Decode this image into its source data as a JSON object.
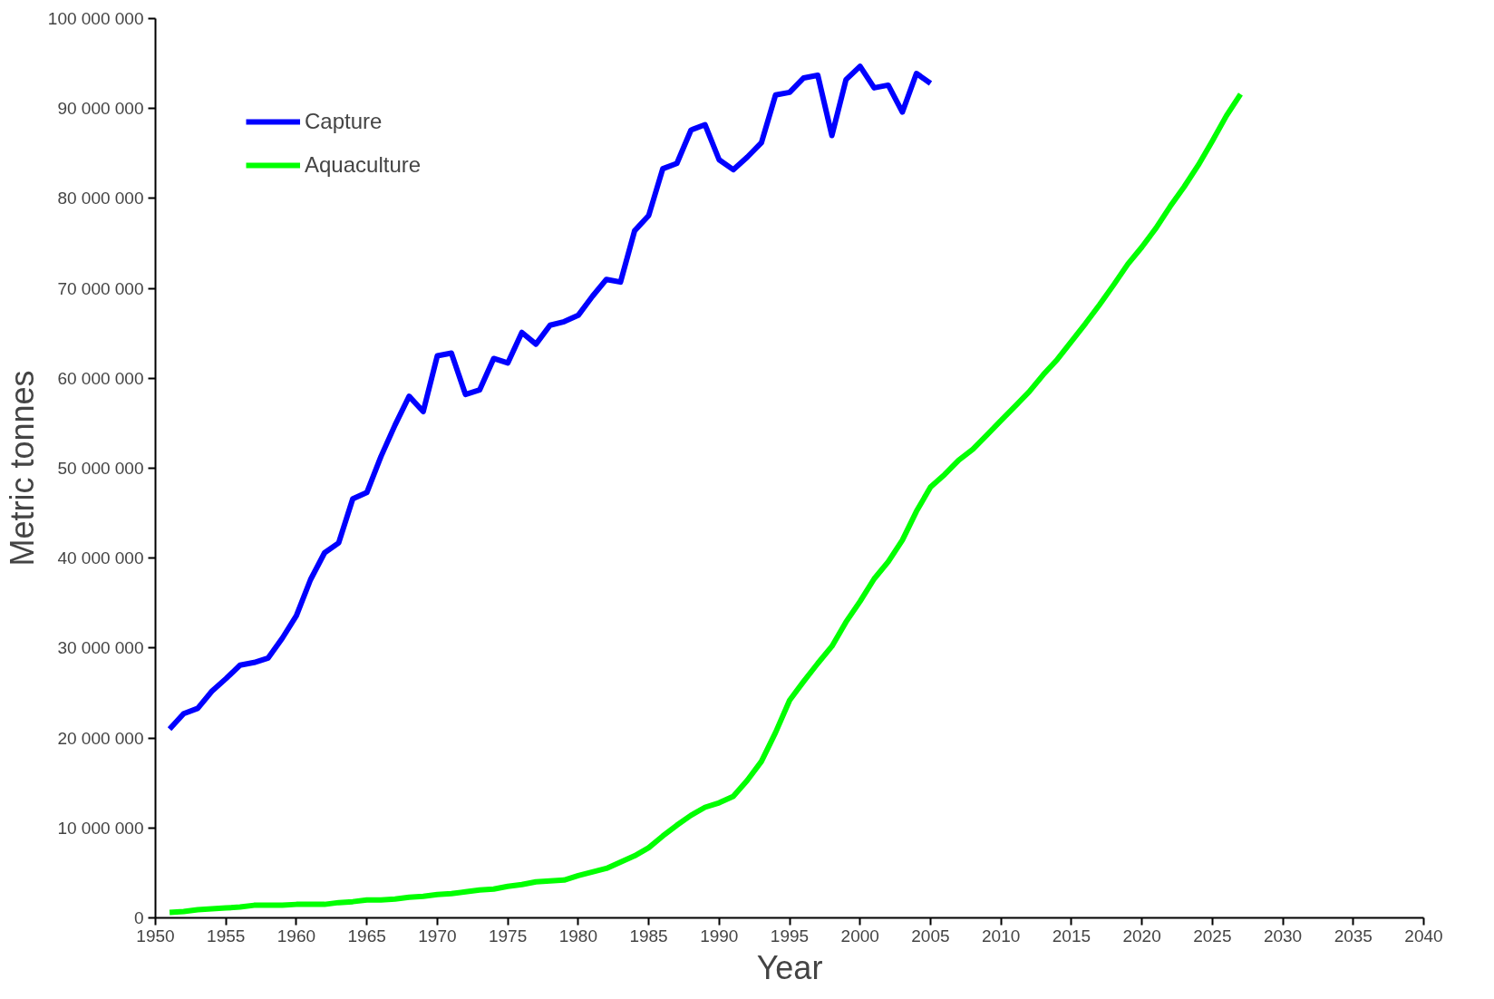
{
  "chart_data": {
    "type": "line",
    "xlabel": "Year",
    "ylabel": "Metric tonnes",
    "xlim": [
      1950,
      2040
    ],
    "xticks": [
      1950,
      1955,
      1960,
      1965,
      1970,
      1975,
      1980,
      1985,
      1990,
      1995,
      2000,
      2005,
      2010,
      2015,
      2020,
      2025,
      2030,
      2035,
      2040
    ],
    "ylim": [
      0,
      100000000
    ],
    "yticks": [
      {
        "value": 0,
        "label": "0"
      },
      {
        "value": 10000000,
        "label": "10 000 000"
      },
      {
        "value": 20000000,
        "label": "20 000 000"
      },
      {
        "value": 30000000,
        "label": "30 000 000"
      },
      {
        "value": 40000000,
        "label": "40 000 000"
      },
      {
        "value": 50000000,
        "label": "50 000 000"
      },
      {
        "value": 60000000,
        "label": "60 000 000"
      },
      {
        "value": 70000000,
        "label": "70 000 000"
      },
      {
        "value": 80000000,
        "label": "80 000 000"
      },
      {
        "value": 90000000,
        "label": "90 000 000"
      },
      {
        "value": 100000000,
        "label": "100 000 000"
      }
    ],
    "grid": false,
    "legend": "top left",
    "marker": "none",
    "line_style": "solid",
    "series": [
      {
        "name": "Capture",
        "color": "#0000ff",
        "x": [
          1951,
          1952,
          1953,
          1954,
          1955,
          1956,
          1957,
          1958,
          1959,
          1960,
          1961,
          1962,
          1963,
          1964,
          1965,
          1966,
          1967,
          1968,
          1969,
          1970,
          1971,
          1972,
          1973,
          1974,
          1975,
          1976,
          1977,
          1978,
          1979,
          1980,
          1981,
          1982,
          1983,
          1984,
          1985,
          1986,
          1987,
          1988,
          1989,
          1990,
          1991,
          1992,
          1993,
          1994,
          1995,
          1996,
          1997,
          1998,
          1999,
          2000,
          2001,
          2002,
          2003,
          2004,
          2005
        ],
        "values": [
          21000000,
          22700000,
          23300000,
          25200000,
          26600000,
          28100000,
          28400000,
          28900000,
          31100000,
          33600000,
          37600000,
          40600000,
          41700000,
          46600000,
          47300000,
          51300000,
          54800000,
          58000000,
          56300000,
          62500000,
          62800000,
          58200000,
          58700000,
          62200000,
          61700000,
          65100000,
          63800000,
          65900000,
          66300000,
          67000000,
          69100000,
          71000000,
          70700000,
          76400000,
          78100000,
          83300000,
          83900000,
          87600000,
          88200000,
          84300000,
          83200000,
          84600000,
          86200000,
          91500000,
          91800000,
          93400000,
          93700000,
          87000000,
          93200000,
          94700000,
          92300000,
          92600000,
          89600000,
          93900000,
          92800000
        ]
      },
      {
        "name": "Aquaculture",
        "color": "#00ff00",
        "x": [
          1951,
          1952,
          1953,
          1954,
          1955,
          1956,
          1957,
          1958,
          1959,
          1960,
          1961,
          1962,
          1963,
          1964,
          1965,
          1966,
          1967,
          1968,
          1969,
          1970,
          1971,
          1972,
          1973,
          1974,
          1975,
          1976,
          1977,
          1978,
          1979,
          1980,
          1981,
          1982,
          1983,
          1984,
          1985,
          1986,
          1987,
          1988,
          1989,
          1990,
          1991,
          1992,
          1993,
          1994,
          1995,
          1996,
          1997,
          1998,
          1999,
          2000,
          2001,
          2002,
          2003,
          2004,
          2005,
          2006,
          2007,
          2008,
          2009,
          2010,
          2011,
          2012,
          2013,
          2014,
          2015,
          2016,
          2017,
          2018,
          2019,
          2020,
          2021,
          2022,
          2023,
          2024,
          2025,
          2026,
          2027
        ],
        "values": [
          600000,
          700000,
          900000,
          1000000,
          1100000,
          1200000,
          1400000,
          1400000,
          1400000,
          1500000,
          1500000,
          1500000,
          1700000,
          1800000,
          2000000,
          2000000,
          2100000,
          2300000,
          2400000,
          2600000,
          2700000,
          2900000,
          3100000,
          3200000,
          3500000,
          3700000,
          4000000,
          4100000,
          4200000,
          4700000,
          5100000,
          5500000,
          6200000,
          6900000,
          7800000,
          9100000,
          10300000,
          11400000,
          12300000,
          12800000,
          13500000,
          15300000,
          17400000,
          20600000,
          24200000,
          26300000,
          28300000,
          30200000,
          32900000,
          35200000,
          37700000,
          39600000,
          42000000,
          45200000,
          47900000,
          49300000,
          50900000,
          52100000,
          53700000,
          55300000,
          56900000,
          58500000,
          60400000,
          62100000,
          64100000,
          66100000,
          68200000,
          70400000,
          72700000,
          74600000,
          76700000,
          79100000,
          81300000,
          83700000,
          86400000,
          89200000,
          91600000
        ]
      }
    ]
  }
}
